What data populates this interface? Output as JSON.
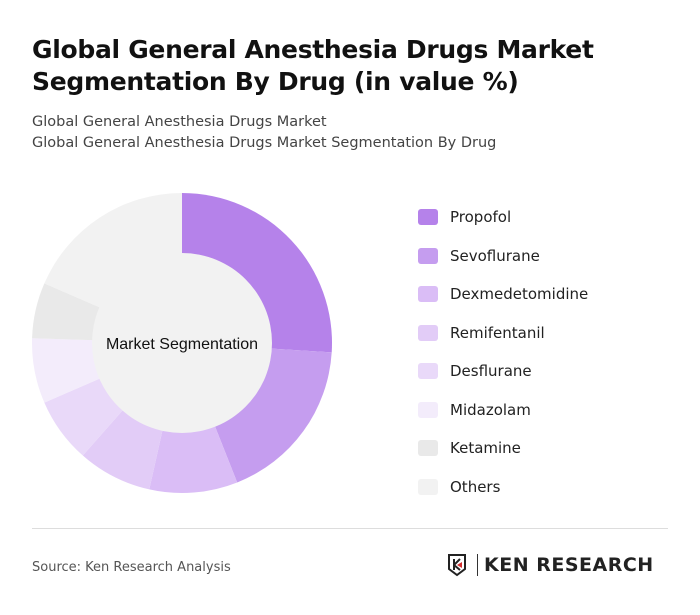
{
  "title": "Global General Anesthesia Drugs Market Segmentation By Drug (in value %)",
  "subtitle_1": "Global General Anesthesia Drugs Market",
  "subtitle_2": "Global General Anesthesia Drugs Market Segmentation By Drug",
  "source": "Source: Ken Research Analysis",
  "logo_text": "KEN RESEARCH",
  "chart_data": {
    "type": "pie",
    "variant": "donut",
    "center_label": "Market Segmentation",
    "legend_position": "right",
    "categories": [
      "Propofol",
      "Sevoflurane",
      "Dexmedetomidine",
      "Remifentanil",
      "Desflurane",
      "Midazolam",
      "Ketamine",
      "Others"
    ],
    "values": [
      26,
      18,
      9.5,
      8,
      7,
      7,
      6,
      18.5
    ],
    "colors": [
      "#b582ea",
      "#c59def",
      "#dabdf6",
      "#e2ccf7",
      "#e9d9f9",
      "#f3ecfb",
      "#e9e9e9",
      "#f2f2f2"
    ]
  }
}
